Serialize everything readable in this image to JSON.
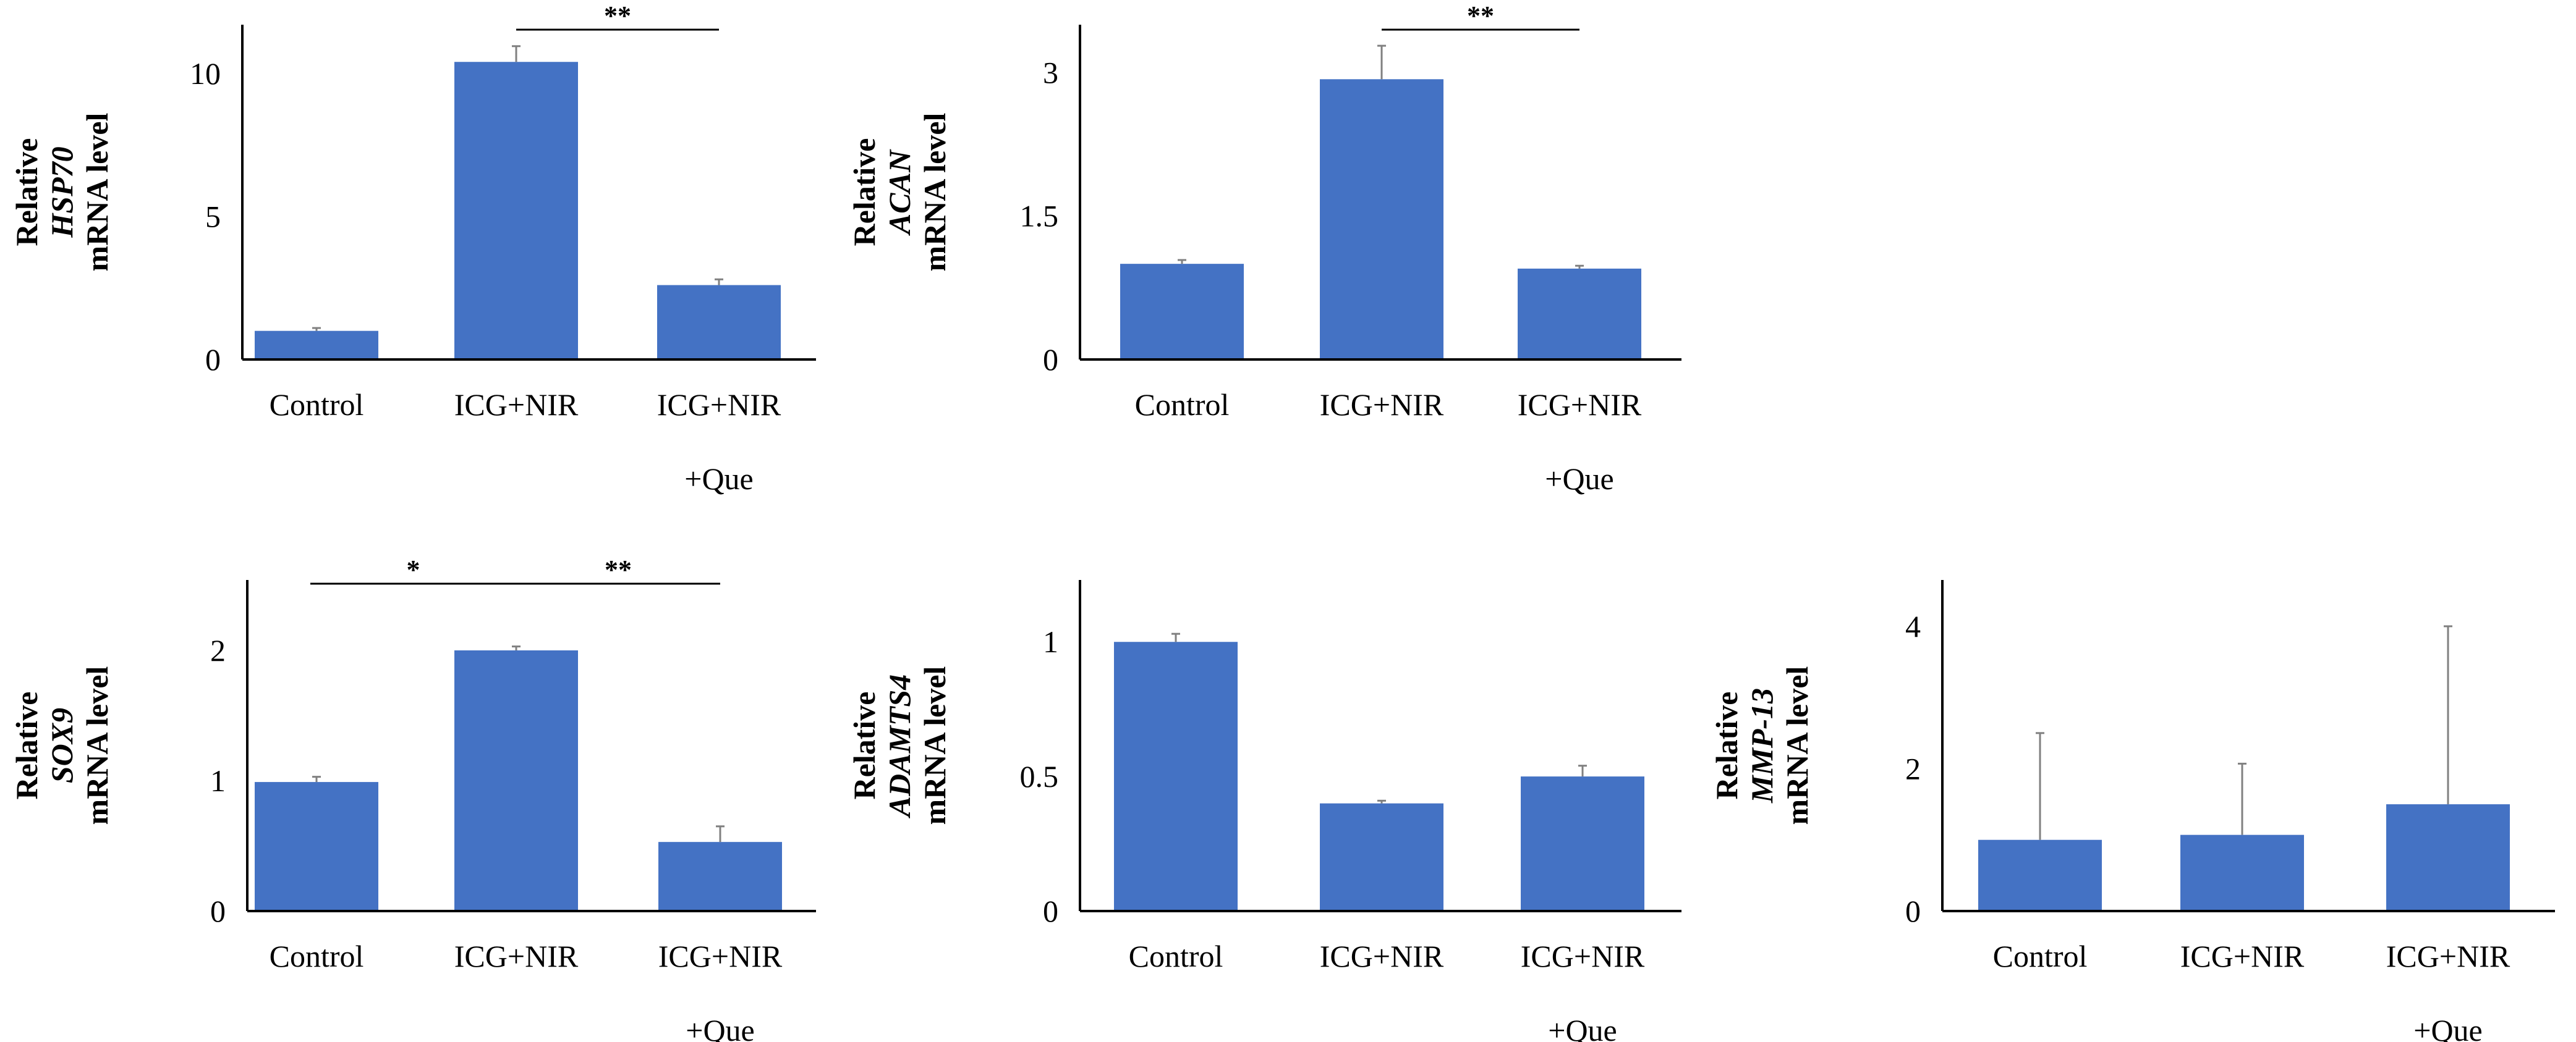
{
  "colors": {
    "bar": "#4472C4",
    "error_bar": "#808080",
    "axis": "#000000"
  },
  "chart_data": [
    {
      "type": "bar",
      "gene": "HSP70",
      "ylabel_prefix": "Relative",
      "ylabel_suffix": "mRNA level",
      "categories": [
        "Control",
        "ICG+NIR",
        "ICG+NIR\n+Que"
      ],
      "values": [
        1.0,
        10.4,
        2.6
      ],
      "errors": [
        0.1,
        0.55,
        0.2
      ],
      "yticks": [
        0,
        5,
        10
      ],
      "ylim": [
        0,
        11.7
      ],
      "significance": [
        {
          "from": 1,
          "to": 2,
          "label": "**"
        }
      ]
    },
    {
      "type": "bar",
      "gene": "ACAN",
      "ylabel_prefix": "Relative",
      "ylabel_suffix": "mRNA level",
      "categories": [
        "Control",
        "ICG+NIR",
        "ICG+NIR\n+Que"
      ],
      "values": [
        1.0,
        2.93,
        0.95
      ],
      "errors": [
        0.04,
        0.35,
        0.03
      ],
      "yticks": [
        0,
        1.5,
        3
      ],
      "ylim": [
        0,
        3.5
      ],
      "significance": [
        {
          "from": 1,
          "to": 2,
          "label": "**"
        }
      ]
    },
    {
      "type": "bar",
      "gene": "SOX9",
      "ylabel_prefix": "Relative",
      "ylabel_suffix": "mRNA level",
      "categories": [
        "Control",
        "ICG+NIR",
        "ICG+NIR\n+Que"
      ],
      "values": [
        0.99,
        2.0,
        0.53
      ],
      "errors": [
        0.04,
        0.03,
        0.12
      ],
      "yticks": [
        0,
        1,
        2
      ],
      "ylim": [
        0,
        2.54
      ],
      "significance": [
        {
          "from": 0,
          "to": 1,
          "label": "*"
        },
        {
          "from": 1,
          "to": 2,
          "label": "**"
        }
      ]
    },
    {
      "type": "bar",
      "gene": "ADAMTS4",
      "ylabel_prefix": "Relative",
      "ylabel_suffix": "mRNA level",
      "categories": [
        "Control",
        "ICG+NIR",
        "ICG+NIR\n+Que"
      ],
      "values": [
        1.0,
        0.4,
        0.5
      ],
      "errors": [
        0.03,
        0.01,
        0.04
      ],
      "yticks": [
        0,
        0.5,
        1
      ],
      "ylim": [
        0,
        1.23
      ],
      "significance": []
    },
    {
      "type": "bar",
      "gene": "MMP-13",
      "ylabel_prefix": "Relative",
      "ylabel_suffix": "mRNA level",
      "categories": [
        "Control",
        "ICG+NIR",
        "ICG+NIR\n+Que"
      ],
      "values": [
        1.0,
        1.07,
        1.5
      ],
      "errors": [
        1.5,
        1.0,
        2.5
      ],
      "yticks": [
        0,
        2,
        4
      ],
      "ylim": [
        0,
        4.65
      ],
      "significance": []
    }
  ]
}
